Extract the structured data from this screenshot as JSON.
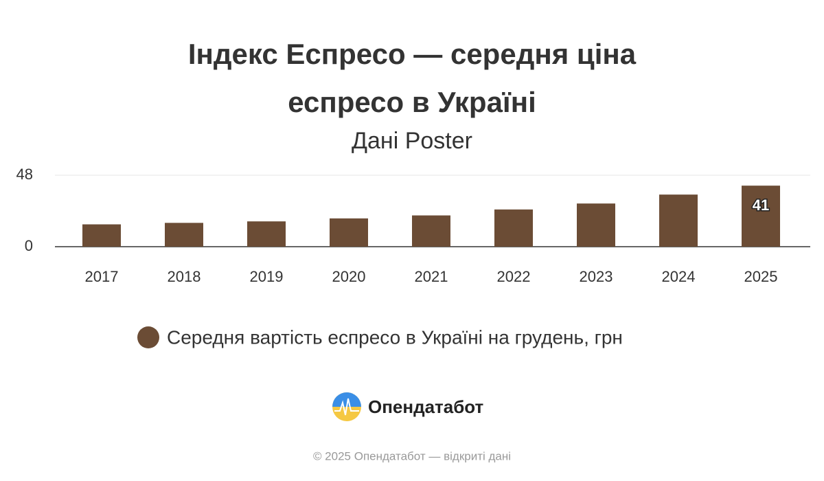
{
  "chart_data": {
    "type": "bar",
    "title": "Індекс Еспресо — середня ціна еспресо в Україні",
    "subtitle": "Дані Poster",
    "categories": [
      "2017",
      "2018",
      "2019",
      "2020",
      "2021",
      "2022",
      "2023",
      "2024",
      "2025"
    ],
    "series": [
      {
        "name": "Середня вартість еспресо в Україні на грудень, грн",
        "color": "#6b4c35",
        "values": [
          15,
          16,
          17,
          19,
          21,
          25,
          29,
          35,
          41
        ]
      }
    ],
    "ylim": [
      0,
      48
    ],
    "yticks": [
      0,
      48
    ],
    "grid": true
  },
  "brand": "Опендатабот",
  "footer": "© 2025 Опендатабот — відкриті дані"
}
